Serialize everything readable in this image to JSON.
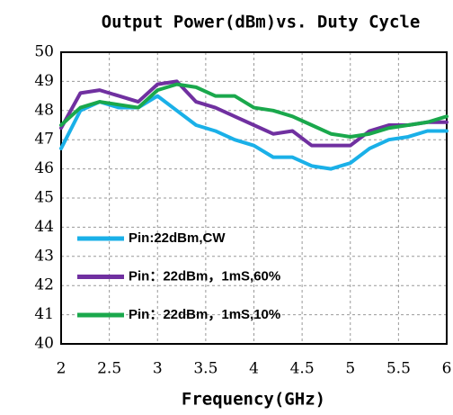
{
  "chart_data": {
    "type": "line",
    "title": "Output Power(dBm)vs. Duty Cycle",
    "x_label": "Frequency(GHz)",
    "x": [
      2,
      2.2,
      2.4,
      2.6,
      2.8,
      3,
      3.2,
      3.4,
      3.6,
      3.8,
      4,
      4.2,
      4.4,
      4.6,
      4.8,
      5,
      5.2,
      5.4,
      5.6,
      5.8,
      6
    ],
    "series": [
      {
        "name": "Pin:22dBm,CW",
        "color": "#1ab0e8",
        "values": [
          46.7,
          48.0,
          48.3,
          48.1,
          48.1,
          48.5,
          48.0,
          47.5,
          47.3,
          47.0,
          46.8,
          46.4,
          46.4,
          46.1,
          46.0,
          46.2,
          46.7,
          47.0,
          47.1,
          47.3,
          47.3
        ]
      },
      {
        "name": "Pin：22dBm，1mS,60%",
        "color": "#7030a0",
        "values": [
          47.4,
          48.6,
          48.7,
          48.5,
          48.3,
          48.9,
          49.0,
          48.3,
          48.1,
          47.8,
          47.5,
          47.2,
          47.3,
          46.8,
          46.8,
          46.8,
          47.3,
          47.5,
          47.5,
          47.6,
          47.6
        ]
      },
      {
        "name": "Pin：22dBm，1mS,10%",
        "color": "#1aa84c",
        "values": [
          47.5,
          48.1,
          48.3,
          48.2,
          48.1,
          48.7,
          48.9,
          48.8,
          48.5,
          48.5,
          48.1,
          48.0,
          47.8,
          47.5,
          47.2,
          47.1,
          47.2,
          47.4,
          47.5,
          47.6,
          47.8
        ]
      }
    ],
    "xlim": [
      2,
      6
    ],
    "xticks": [
      2,
      2.5,
      3,
      3.5,
      4,
      4.5,
      5,
      5.5,
      6
    ],
    "ylim": [
      40,
      50
    ],
    "yticks": [
      40,
      41,
      42,
      43,
      44,
      45,
      46,
      47,
      48,
      49,
      50
    ],
    "grid": true,
    "legend": "lower left"
  }
}
